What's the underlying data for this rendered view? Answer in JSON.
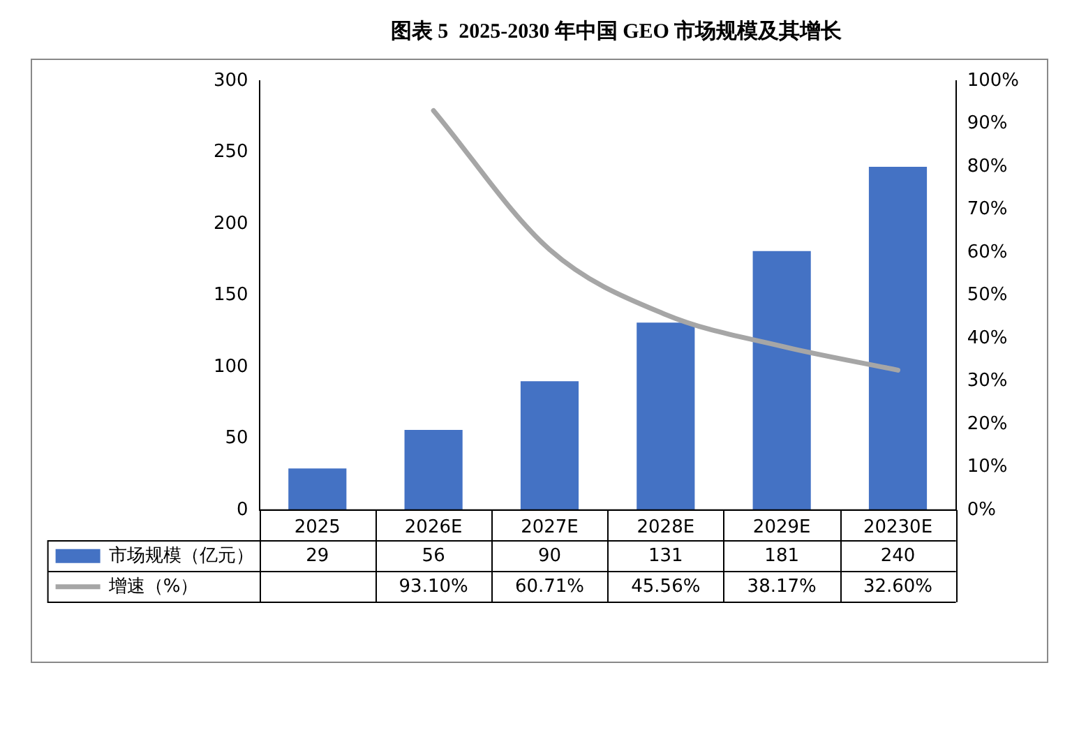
{
  "chart_data": {
    "type": "bar",
    "title": "图表 5  2025-2030 年中国 GEO 市场规模及其增长",
    "categories": [
      "2025",
      "2026E",
      "2027E",
      "2028E",
      "2029E",
      "20230E"
    ],
    "series": [
      {
        "name": "市场规模（亿元）",
        "color": "#4472c4",
        "values": [
          29,
          56,
          90,
          131,
          181,
          240
        ],
        "value_labels": [
          "29",
          "56",
          "90",
          "131",
          "181",
          "240"
        ]
      },
      {
        "name": "增速（%）",
        "type": "line",
        "axis": "y2",
        "color": "#a6a6a6",
        "values": [
          null,
          93.1,
          60.71,
          45.56,
          38.17,
          32.6
        ],
        "value_labels": [
          null,
          "93.10%",
          "60.71%",
          "45.56%",
          "38.17%",
          "32.60%"
        ]
      }
    ],
    "ylim": [
      0,
      300
    ],
    "yticks": [
      0,
      50,
      100,
      150,
      200,
      250,
      300
    ],
    "y2lim": [
      0,
      100
    ],
    "y2ticks": [
      {
        "value": 0,
        "label": "0%"
      },
      {
        "value": 10,
        "label": "10%"
      },
      {
        "value": 20,
        "label": "20%"
      },
      {
        "value": 30,
        "label": "30%"
      },
      {
        "value": 40,
        "label": "40%"
      },
      {
        "value": 50,
        "label": "50%"
      },
      {
        "value": 60,
        "label": "60%"
      },
      {
        "value": 70,
        "label": "70%"
      },
      {
        "value": 80,
        "label": "80%"
      },
      {
        "value": 90,
        "label": "90%"
      },
      {
        "value": 100,
        "label": "100%"
      }
    ],
    "grid": false,
    "legend": "bottom",
    "marker": "none",
    "line_style": "solid"
  }
}
